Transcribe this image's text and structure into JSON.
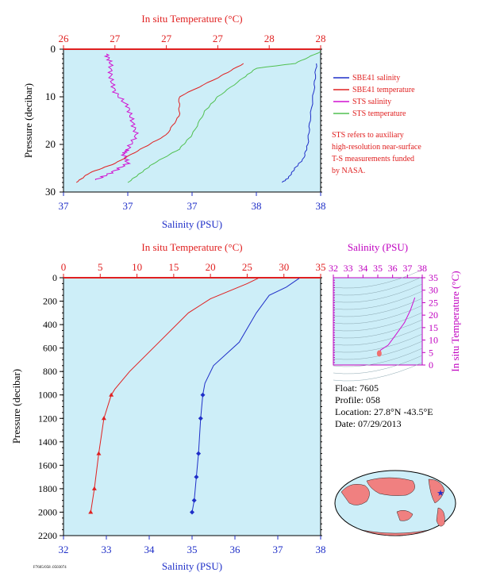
{
  "charts": {
    "top": {
      "top_axis_title": "In situ Temperature (°C)",
      "bottom_axis_title": "Salinity (PSU)",
      "left_axis_title": "Pressure (decibar)",
      "top_ticks": [
        "26",
        "27",
        "27",
        "27",
        "28",
        "28"
      ],
      "bottom_ticks": [
        "37",
        "37",
        "37",
        "38",
        "38"
      ],
      "left_ticks": [
        "0",
        "10",
        "20",
        "30"
      ]
    },
    "bottom": {
      "top_axis_title": "In situ Temperature (°C)",
      "bottom_axis_title": "Salinity (PSU)",
      "left_axis_title": "Pressure (decibar)",
      "top_ticks": [
        "0",
        "5",
        "10",
        "15",
        "20",
        "25",
        "30",
        "35"
      ],
      "bottom_ticks": [
        "32",
        "33",
        "34",
        "35",
        "36",
        "37",
        "38"
      ],
      "left_ticks": [
        "0",
        "200",
        "400",
        "600",
        "800",
        "1000",
        "1200",
        "1400",
        "1600",
        "1800",
        "2000",
        "2200"
      ]
    },
    "ts": {
      "top_axis_title": "Salinity (PSU)",
      "right_axis_title": "In situ Temperature (°C)",
      "top_ticks": [
        "32",
        "33",
        "34",
        "35",
        "36",
        "37",
        "38"
      ],
      "right_ticks": [
        "0",
        "5",
        "10",
        "15",
        "20",
        "25",
        "30",
        "35"
      ]
    }
  },
  "legend": {
    "items": [
      {
        "label": "SBE41 salinity",
        "color": "#1f2fc8"
      },
      {
        "label": "SBE41 temperature",
        "color": "#e02020"
      },
      {
        "label": "STS salinity",
        "color": "#d010d0"
      },
      {
        "label": "STS temperature",
        "color": "#50c050"
      }
    ],
    "note": [
      "STS refers to auxiliary",
      "high-resolution near-surface",
      "T-S measurements funded",
      "by NASA."
    ]
  },
  "info": {
    "float": "Float:  7605",
    "profile": "Profile:  058",
    "location": "Location:  27.8°N  -43.5°E",
    "date": "Date:  07/29/2013"
  },
  "footer_text": "F7605/058 .0503074",
  "chart_data": [
    {
      "type": "line",
      "title": "",
      "xlabel_top": "In situ Temperature (°C)",
      "xlabel_bottom": "Salinity (PSU)",
      "ylabel": "Pressure (decibar)",
      "ylim": [
        30,
        0
      ],
      "temp_lim": [
        26,
        28
      ],
      "sal_lim": [
        36.8,
        38.0
      ],
      "series": [
        {
          "name": "STS salinity",
          "axis": "salinity",
          "color": "#d010d0",
          "points": [
            [
              37.0,
              1
            ],
            [
              37.02,
              3
            ],
            [
              37.02,
              6
            ],
            [
              37.04,
              9
            ],
            [
              37.1,
              12
            ],
            [
              37.12,
              15
            ],
            [
              37.14,
              18
            ],
            [
              37.1,
              21
            ],
            [
              37.08,
              22
            ],
            [
              37.1,
              24
            ],
            [
              37.02,
              26
            ],
            [
              36.95,
              27.5
            ]
          ]
        },
        {
          "name": "STS temperature",
          "axis": "temperature",
          "color": "#50c050",
          "points": [
            [
              28.0,
              0.5
            ],
            [
              27.8,
              3
            ],
            [
              27.5,
              4
            ],
            [
              27.4,
              6
            ],
            [
              27.2,
              10
            ],
            [
              27.1,
              13
            ],
            [
              27.0,
              18
            ],
            [
              26.9,
              21
            ],
            [
              26.7,
              24
            ],
            [
              26.6,
              26
            ],
            [
              26.5,
              28
            ]
          ]
        },
        {
          "name": "SBE41 salinity",
          "axis": "salinity",
          "color": "#1f2fc8",
          "points": [
            [
              37.98,
              3
            ],
            [
              37.97,
              8
            ],
            [
              37.95,
              15
            ],
            [
              37.94,
              20
            ],
            [
              37.92,
              23
            ],
            [
              37.88,
              25
            ],
            [
              37.85,
              27
            ],
            [
              37.82,
              28
            ]
          ]
        },
        {
          "name": "SBE41 temperature",
          "axis": "temperature",
          "color": "#e02020",
          "points": [
            [
              27.4,
              3
            ],
            [
              27.2,
              6
            ],
            [
              26.9,
              10
            ],
            [
              26.9,
              14
            ],
            [
              26.8,
              18
            ],
            [
              26.6,
              21
            ],
            [
              26.4,
              24
            ],
            [
              26.2,
              26
            ],
            [
              26.1,
              28
            ]
          ]
        }
      ]
    },
    {
      "type": "line",
      "title": "",
      "xlabel_top": "In situ Temperature (°C)",
      "xlabel_bottom": "Salinity (PSU)",
      "ylabel": "Pressure (decibar)",
      "ylim": [
        2200,
        0
      ],
      "temp_lim": [
        0,
        35
      ],
      "sal_lim": [
        32,
        38
      ],
      "series": [
        {
          "name": "SBE41 salinity",
          "axis": "salinity",
          "color": "#1f2fc8",
          "points": [
            [
              37.5,
              5
            ],
            [
              37.2,
              80
            ],
            [
              36.8,
              150
            ],
            [
              36.5,
              300
            ],
            [
              36.1,
              550
            ],
            [
              35.5,
              750
            ],
            [
              35.3,
              900
            ],
            [
              35.25,
              1000
            ],
            [
              35.2,
              1200
            ],
            [
              35.15,
              1500
            ],
            [
              35.1,
              1700
            ],
            [
              35.05,
              1900
            ],
            [
              35.0,
              2000
            ]
          ]
        },
        {
          "name": "SBE41 temperature",
          "axis": "temperature",
          "color": "#e02020",
          "points": [
            [
              26.5,
              5
            ],
            [
              25,
              50
            ],
            [
              20,
              180
            ],
            [
              17,
              300
            ],
            [
              13,
              550
            ],
            [
              9,
              800
            ],
            [
              7,
              950
            ],
            [
              6.5,
              1000
            ],
            [
              5.5,
              1200
            ],
            [
              4.8,
              1500
            ],
            [
              4.2,
              1800
            ],
            [
              3.7,
              2000
            ]
          ]
        }
      ]
    },
    {
      "type": "line",
      "title": "",
      "xlabel": "Salinity (PSU)",
      "ylabel": "In situ Temperature (°C)",
      "xlim": [
        32,
        38
      ],
      "ylim": [
        0,
        35
      ],
      "series": [
        {
          "name": "",
          "color": "#d010d0",
          "points": [
            [
              37.5,
              27
            ],
            [
              37.2,
              22
            ],
            [
              36.8,
              17
            ],
            [
              36.2,
              12
            ],
            [
              35.7,
              8
            ],
            [
              35.2,
              6
            ],
            [
              35.1,
              4
            ]
          ]
        }
      ]
    }
  ]
}
